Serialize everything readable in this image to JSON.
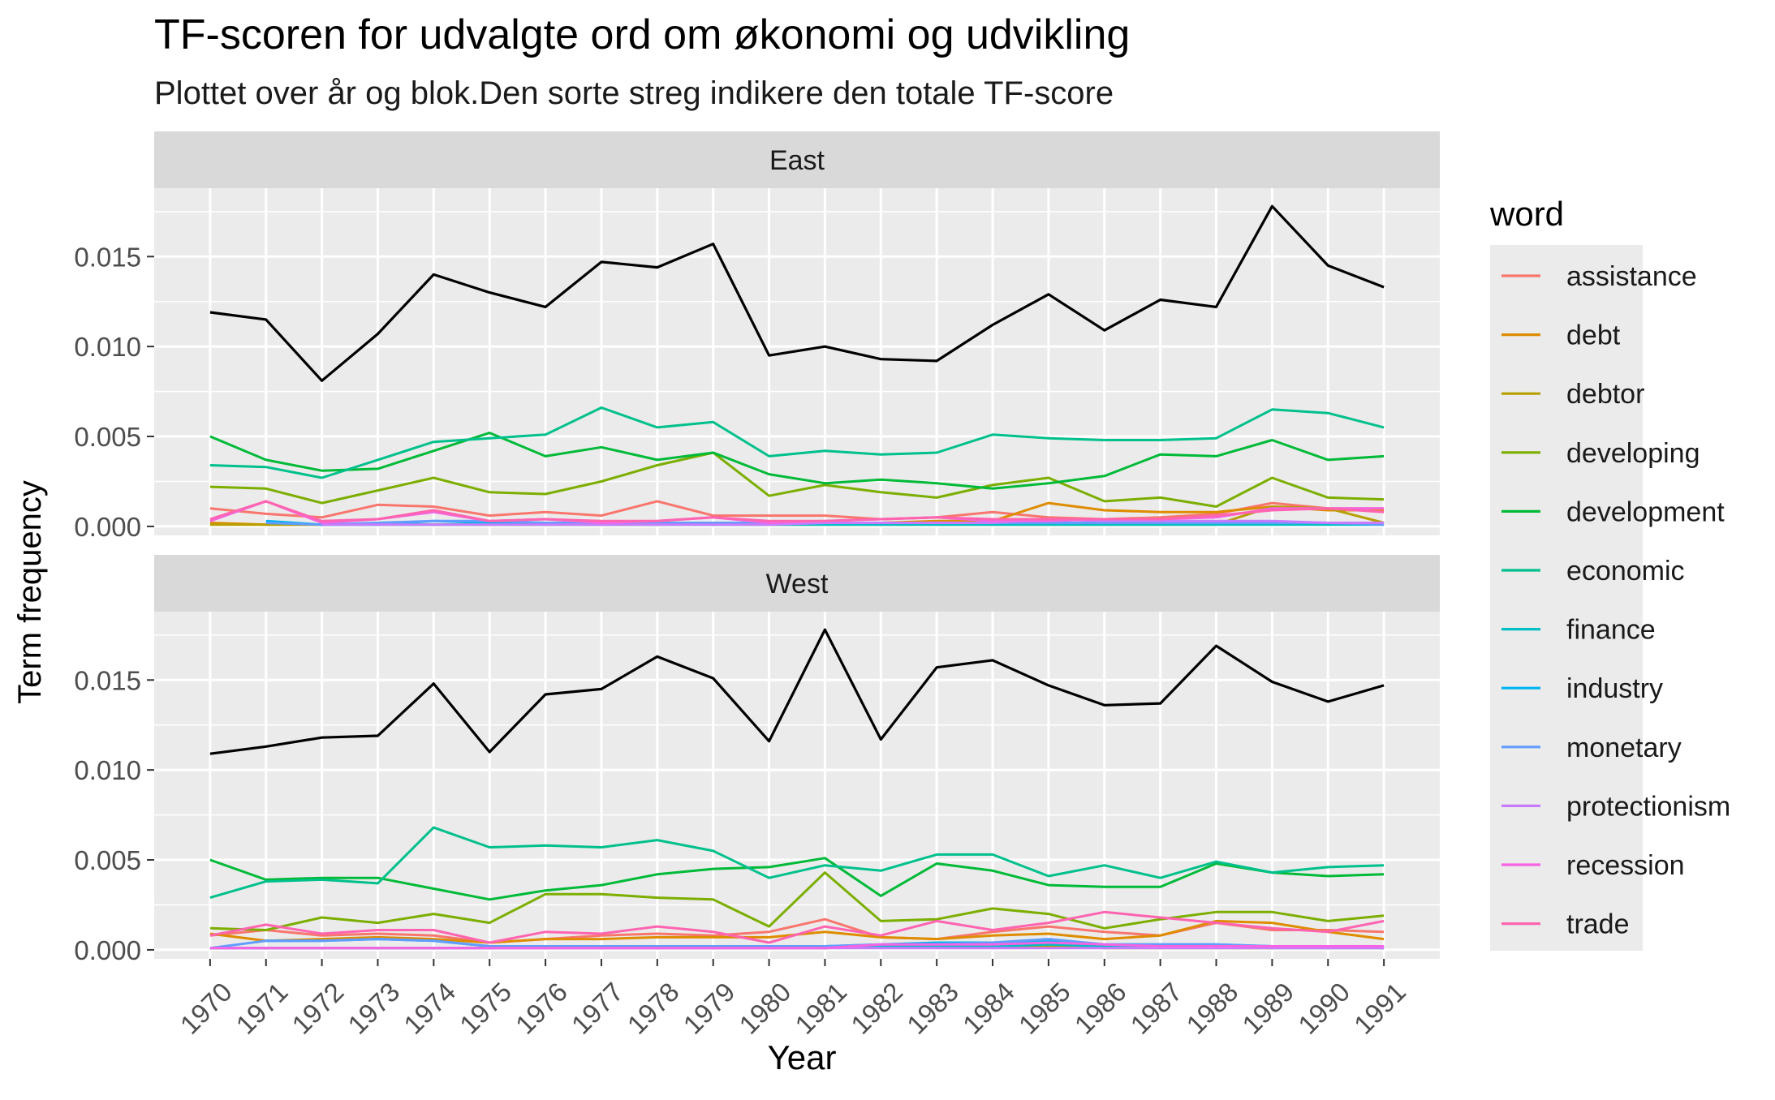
{
  "chart_data": {
    "type": "line",
    "title": "TF-scoren for udvalgte ord om økonomi og udvikling",
    "subtitle": "Plottet over år og blok.Den sorte streg indikere den totale TF-score",
    "xlabel": "Year",
    "ylabel": "Term frequency",
    "legend_title": "word",
    "legend_position": "right",
    "grid": true,
    "ylim": [
      -0.0005,
      0.0188
    ],
    "y_ticks": [
      0.0,
      0.005,
      0.01,
      0.015
    ],
    "y_tick_labels": [
      "0.000",
      "0.005",
      "0.010",
      "0.015"
    ],
    "x": [
      1970,
      1971,
      1972,
      1973,
      1974,
      1975,
      1976,
      1977,
      1978,
      1979,
      1980,
      1981,
      1982,
      1983,
      1984,
      1985,
      1986,
      1987,
      1988,
      1989,
      1990,
      1991
    ],
    "x_tick_labels": [
      "1970",
      "1971",
      "1972",
      "1973",
      "1974",
      "1975",
      "1976",
      "1977",
      "1978",
      "1979",
      "1980",
      "1981",
      "1982",
      "1983",
      "1984",
      "1985",
      "1986",
      "1987",
      "1988",
      "1989",
      "1990",
      "1991"
    ],
    "colors": {
      "assistance": "#F8766D",
      "debt": "#DE8C00",
      "debtor": "#B79F00",
      "developing": "#7CAE00",
      "development": "#00BA38",
      "economic": "#00C08B",
      "finance": "#00BFC4",
      "industry": "#00B4F0",
      "monetary": "#619CFF",
      "protectionism": "#C77CFF",
      "recession": "#F564E3",
      "trade": "#FF64B0",
      "total": "#000000"
    },
    "legend": [
      "assistance",
      "debt",
      "debtor",
      "developing",
      "development",
      "economic",
      "finance",
      "industry",
      "monetary",
      "protectionism",
      "recession",
      "trade"
    ],
    "panels": [
      {
        "label": "East",
        "total": [
          0.0119,
          0.0115,
          0.0081,
          0.0107,
          0.014,
          0.013,
          0.0122,
          0.0147,
          0.0144,
          0.0157,
          0.0095,
          0.01,
          0.0093,
          0.0092,
          0.0112,
          0.0129,
          0.0109,
          0.0126,
          0.0122,
          0.0178,
          0.0145,
          0.0133
        ],
        "series": [
          {
            "name": "assistance",
            "values": [
              0.001,
              0.0007,
              0.0005,
              0.0012,
              0.0011,
              0.0006,
              0.0008,
              0.0006,
              0.0014,
              0.0006,
              0.0006,
              0.0006,
              0.0004,
              0.0005,
              0.0008,
              0.0005,
              0.0004,
              0.0005,
              0.0007,
              0.0013,
              0.001,
              0.001
            ]
          },
          {
            "name": "debt",
            "values": [
              0.0002,
              0.0001,
              0.0001,
              0.0001,
              0.0001,
              0.0001,
              0.0001,
              0.0001,
              0.0001,
              0.0002,
              0.0002,
              0.0002,
              0.0002,
              0.0003,
              0.0003,
              0.0013,
              0.0009,
              0.0008,
              0.0008,
              0.0011,
              0.0009,
              0.0009
            ]
          },
          {
            "name": "debtor",
            "values": [
              0.0001,
              0.0001,
              0.0001,
              0.0001,
              0.0001,
              0.0001,
              0.0001,
              0.0001,
              0.0001,
              0.0001,
              0.0001,
              0.0001,
              0.0001,
              0.0001,
              0.0001,
              0.0001,
              0.0001,
              0.0001,
              0.0001,
              0.0011,
              0.001,
              0.0002
            ]
          },
          {
            "name": "developing",
            "values": [
              0.0022,
              0.0021,
              0.0013,
              0.002,
              0.0027,
              0.0019,
              0.0018,
              0.0025,
              0.0034,
              0.0041,
              0.0017,
              0.0023,
              0.0019,
              0.0016,
              0.0023,
              0.0027,
              0.0014,
              0.0016,
              0.0011,
              0.0027,
              0.0016,
              0.0015
            ]
          },
          {
            "name": "development",
            "values": [
              0.005,
              0.0037,
              0.0031,
              0.0032,
              0.0042,
              0.0052,
              0.0039,
              0.0044,
              0.0037,
              0.0041,
              0.0029,
              0.0024,
              0.0026,
              0.0024,
              0.0021,
              0.0024,
              0.0028,
              0.004,
              0.0039,
              0.0048,
              0.0037,
              0.0039
            ]
          },
          {
            "name": "economic",
            "values": [
              0.0034,
              0.0033,
              0.0027,
              0.0037,
              0.0047,
              0.0049,
              0.0051,
              0.0066,
              0.0055,
              0.0058,
              0.0039,
              0.0042,
              0.004,
              0.0041,
              0.0051,
              0.0049,
              0.0048,
              0.0048,
              0.0049,
              0.0065,
              0.0063,
              0.0055
            ]
          },
          {
            "name": "finance",
            "values": [
              null,
              0.0002,
              0.0001,
              0.0001,
              0.0001,
              0.0001,
              0.0001,
              0.0001,
              0.0001,
              0.0001,
              0.0001,
              0.0001,
              0.0001,
              0.0001,
              0.0001,
              0.0001,
              0.0001,
              0.0001,
              0.0001,
              0.0001,
              0.0001,
              0.0001
            ]
          },
          {
            "name": "industry",
            "values": [
              null,
              0.0003,
              0.0001,
              0.0001,
              0.0003,
              0.0002,
              0.0002,
              0.0002,
              0.0002,
              0.0002,
              0.0002,
              0.0002,
              0.0002,
              0.0002,
              0.0002,
              0.0002,
              0.0002,
              0.0002,
              0.0002,
              0.0002,
              0.0002,
              0.0002
            ]
          },
          {
            "name": "monetary",
            "values": [
              null,
              0.0002,
              0.0001,
              0.0002,
              0.0003,
              0.0003,
              0.0002,
              0.0002,
              0.0002,
              0.0002,
              0.0002,
              0.0002,
              0.0002,
              0.0002,
              0.0002,
              0.0002,
              0.0002,
              0.0002,
              0.0002,
              0.0002,
              0.0002,
              0.0001
            ]
          },
          {
            "name": "protectionism",
            "values": [
              null,
              null,
              0.0001,
              0.0001,
              0.0001,
              0.0001,
              0.0001,
              0.0001,
              0.0001,
              0.0001,
              0.0001,
              0.0002,
              0.0002,
              0.0002,
              0.0002,
              0.0004,
              0.0003,
              0.0003,
              0.0003,
              0.0003,
              0.0002,
              0.0002
            ]
          },
          {
            "name": "recession",
            "values": [
              0.0003,
              0.0014,
              0.0002,
              0.0004,
              0.0008,
              0.0003,
              0.0004,
              0.0002,
              0.0003,
              0.0005,
              0.0002,
              0.0003,
              0.0004,
              0.0005,
              0.0003,
              0.0003,
              0.0004,
              0.0004,
              0.0005,
              0.001,
              0.001,
              0.001
            ]
          },
          {
            "name": "trade",
            "values": [
              0.0004,
              0.0014,
              0.0003,
              0.0004,
              0.0009,
              0.0003,
              0.0004,
              0.0003,
              0.0003,
              0.0005,
              0.0003,
              0.0003,
              0.0004,
              0.0005,
              0.0004,
              0.0004,
              0.0004,
              0.0004,
              0.0006,
              0.0009,
              0.001,
              0.0008
            ]
          }
        ]
      },
      {
        "label": "West",
        "total": [
          0.0109,
          0.0113,
          0.0118,
          0.0119,
          0.0148,
          0.011,
          0.0142,
          0.0145,
          0.0163,
          0.0151,
          0.0116,
          0.0178,
          0.0117,
          0.0157,
          0.0161,
          0.0147,
          0.0136,
          0.0137,
          0.0169,
          0.0149,
          0.0138,
          0.0147
        ],
        "series": [
          {
            "name": "assistance",
            "values": [
              0.0008,
              0.0011,
              0.0008,
              0.0009,
              0.0008,
              0.0004,
              0.0006,
              0.0008,
              0.0009,
              0.0008,
              0.001,
              0.0017,
              0.0007,
              0.0006,
              0.001,
              0.0013,
              0.001,
              0.0008,
              0.0015,
              0.0011,
              0.0011,
              0.001
            ]
          },
          {
            "name": "debt",
            "values": [
              0.0009,
              0.0005,
              0.0006,
              0.0007,
              0.0006,
              0.0004,
              0.0006,
              0.0006,
              0.0007,
              0.0007,
              0.0007,
              0.001,
              0.0007,
              0.0006,
              0.0008,
              0.0009,
              0.0006,
              0.0008,
              0.0016,
              0.0015,
              0.001,
              0.0006
            ]
          },
          {
            "name": "debtor",
            "values": [
              0.0001,
              0.0001,
              0.0001,
              0.0001,
              0.0001,
              0.0001,
              0.0001,
              0.0001,
              0.0001,
              0.0001,
              0.0001,
              0.0001,
              0.0002,
              0.0002,
              0.0002,
              0.0002,
              0.0001,
              0.0001,
              0.0001,
              0.0001,
              0.0001,
              0.0001
            ]
          },
          {
            "name": "developing",
            "values": [
              0.0012,
              0.0011,
              0.0018,
              0.0015,
              0.002,
              0.0015,
              0.0031,
              0.0031,
              0.0029,
              0.0028,
              0.0013,
              0.0043,
              0.0016,
              0.0017,
              0.0023,
              0.002,
              0.0012,
              0.0017,
              0.0021,
              0.0021,
              0.0016,
              0.0019
            ]
          },
          {
            "name": "development",
            "values": [
              0.005,
              0.0039,
              0.004,
              0.004,
              0.0034,
              0.0028,
              0.0033,
              0.0036,
              0.0042,
              0.0045,
              0.0046,
              0.0051,
              0.003,
              0.0048,
              0.0044,
              0.0036,
              0.0035,
              0.0035,
              0.0048,
              0.0043,
              0.0041,
              0.0042
            ]
          },
          {
            "name": "economic",
            "values": [
              0.0029,
              0.0038,
              0.0039,
              0.0037,
              0.0068,
              0.0057,
              0.0058,
              0.0057,
              0.0061,
              0.0055,
              0.004,
              0.0047,
              0.0044,
              0.0053,
              0.0053,
              0.0041,
              0.0047,
              0.004,
              0.0049,
              0.0043,
              0.0046,
              0.0047
            ]
          },
          {
            "name": "finance",
            "values": [
              0.0001,
              0.0001,
              0.0001,
              0.0001,
              0.0001,
              0.0001,
              0.0001,
              0.0001,
              0.0001,
              0.0001,
              0.0001,
              0.0001,
              0.0002,
              0.0002,
              0.0002,
              0.0003,
              0.0002,
              0.0002,
              0.0002,
              0.0002,
              0.0002,
              0.0001
            ]
          },
          {
            "name": "industry",
            "values": [
              null,
              0.0005,
              0.0005,
              0.0006,
              0.0005,
              0.0002,
              0.0002,
              0.0002,
              0.0002,
              0.0002,
              0.0002,
              0.0002,
              0.0003,
              0.0004,
              0.0004,
              0.0005,
              0.0003,
              0.0003,
              0.0003,
              0.0002,
              0.0002,
              0.0002
            ]
          },
          {
            "name": "monetary",
            "values": [
              0.0001,
              0.0005,
              0.0005,
              0.0006,
              0.0005,
              0.0002,
              0.0002,
              0.0002,
              0.0002,
              0.0002,
              0.0002,
              0.0002,
              0.0003,
              0.0003,
              0.0004,
              0.0006,
              0.0003,
              0.0003,
              0.0003,
              0.0002,
              0.0002,
              0.0002
            ]
          },
          {
            "name": "protectionism",
            "values": [
              0.0001,
              0.0001,
              0.0001,
              0.0001,
              0.0001,
              0.0001,
              0.0001,
              0.0001,
              0.0001,
              0.0001,
              0.0001,
              0.0001,
              0.0001,
              0.0001,
              0.0001,
              0.0001,
              0.0001,
              0.0001,
              0.0001,
              0.0001,
              0.0001,
              0.0001
            ]
          },
          {
            "name": "recession",
            "values": [
              0.0001,
              0.0001,
              0.0001,
              0.0001,
              0.0001,
              0.0001,
              0.0001,
              0.0001,
              0.0001,
              0.0001,
              0.0001,
              0.0001,
              0.0003,
              0.0003,
              0.0003,
              0.0004,
              0.0003,
              0.0002,
              0.0002,
              0.0002,
              0.0002,
              0.0002
            ]
          },
          {
            "name": "trade",
            "values": [
              0.0008,
              0.0014,
              0.0009,
              0.0011,
              0.0011,
              0.0004,
              0.001,
              0.0009,
              0.0013,
              0.001,
              0.0004,
              0.0013,
              0.0008,
              0.0016,
              0.0011,
              0.0015,
              0.0021,
              0.0018,
              0.0015,
              0.0012,
              0.001,
              0.0016
            ]
          }
        ]
      }
    ]
  }
}
